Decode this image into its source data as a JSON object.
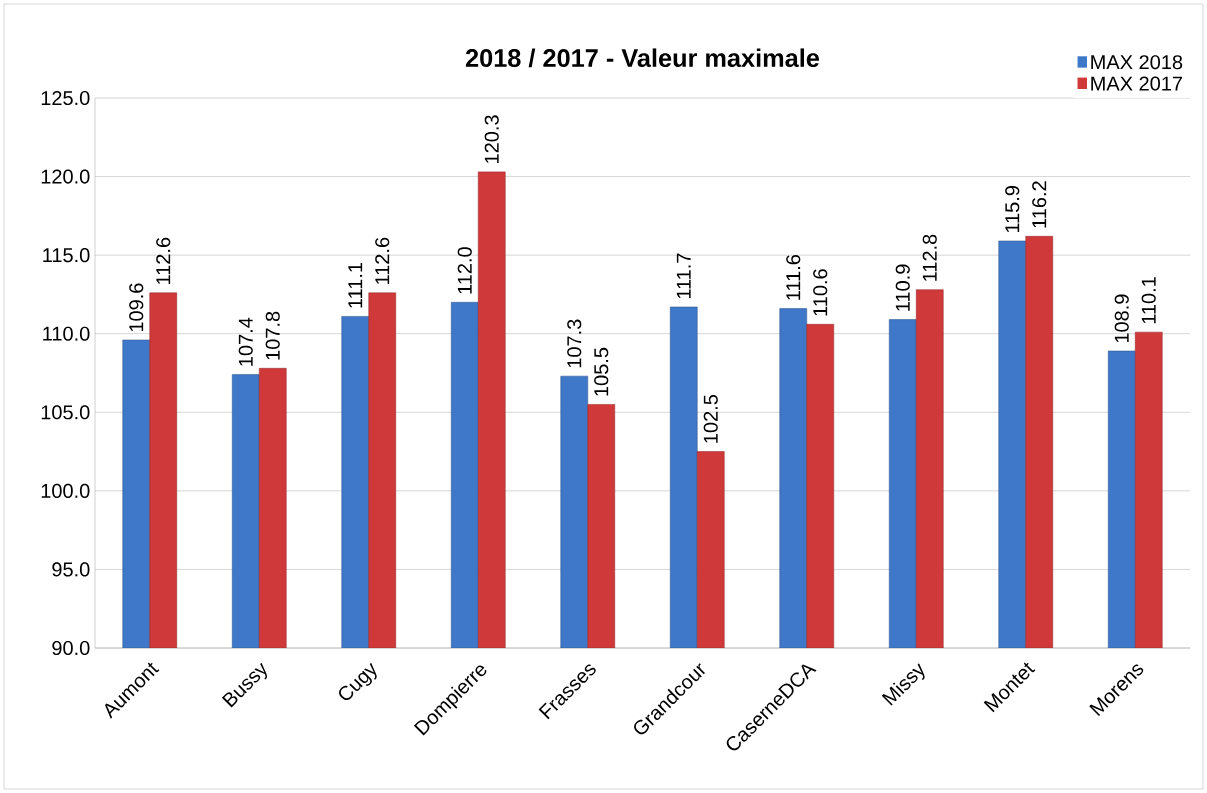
{
  "chart_data": {
    "type": "bar",
    "title": "2018 / 2017 - Valeur maximale",
    "categories": [
      "Aumont",
      "Bussy",
      "Cugy",
      "Dompierre",
      "Frasses",
      "Grandcour",
      "CaserneDCA",
      "Missy",
      "Montet",
      "Morens"
    ],
    "series": [
      {
        "name": "MAX 2018",
        "color": "#3f78c8",
        "values": [
          109.6,
          107.4,
          111.1,
          112.0,
          107.3,
          111.7,
          111.6,
          110.9,
          115.9,
          108.9
        ],
        "value_labels": [
          "109.6",
          "107.4",
          "111.1",
          "112.0",
          "107.3",
          "111.7",
          "111.6",
          "110.9",
          "115.9",
          "108.9"
        ]
      },
      {
        "name": "MAX 2017",
        "color": "#d0393a",
        "values": [
          112.6,
          107.8,
          112.6,
          120.3,
          105.5,
          102.5,
          110.6,
          112.8,
          116.2,
          110.1
        ],
        "value_labels": [
          "112.6",
          "107.8",
          "112.6",
          "120.3",
          "105.5",
          "102.5",
          "110.6",
          "112.8",
          "116.2",
          "110.1"
        ]
      }
    ],
    "ylim": [
      90,
      125
    ],
    "yticks": [
      {
        "value": 90,
        "label": "90.0"
      },
      {
        "value": 95,
        "label": "95.0"
      },
      {
        "value": 100,
        "label": "100.0"
      },
      {
        "value": 105,
        "label": "105.0"
      },
      {
        "value": 110,
        "label": "110.0"
      },
      {
        "value": 115,
        "label": "115.0"
      },
      {
        "value": 120,
        "label": "120.0"
      },
      {
        "value": 125,
        "label": "125.0"
      }
    ],
    "grid": "y",
    "legend": "top right"
  }
}
